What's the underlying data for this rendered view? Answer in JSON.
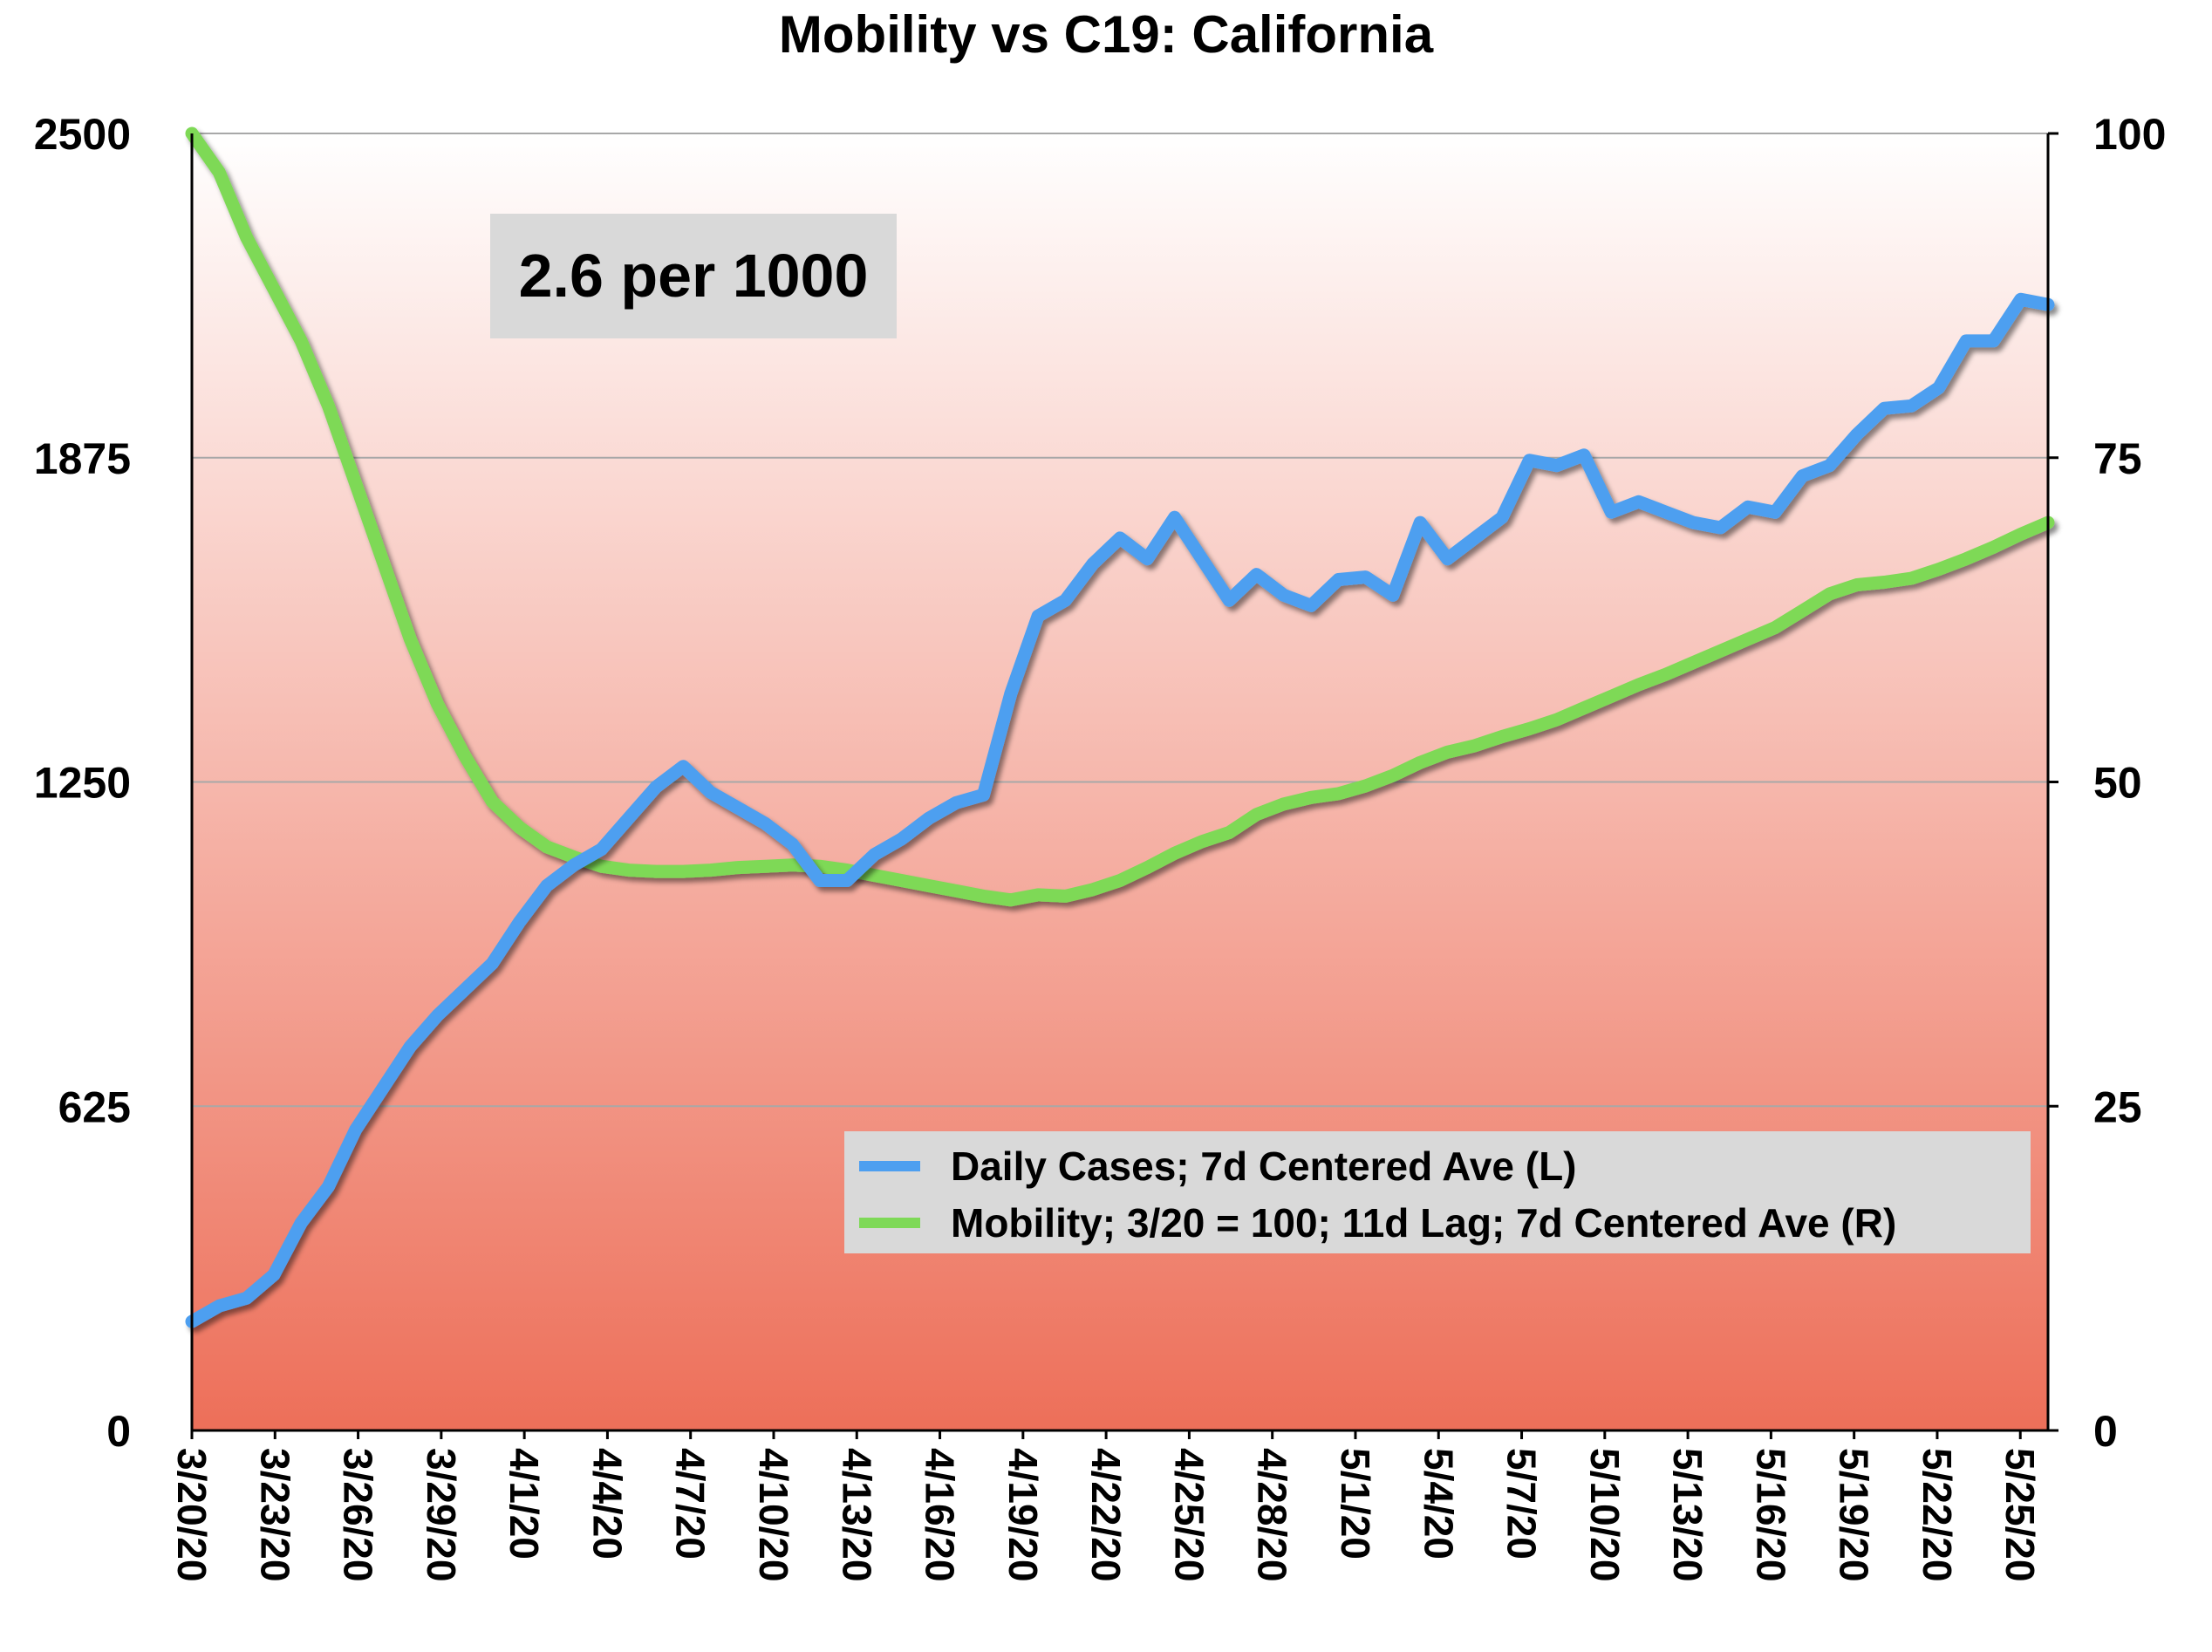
{
  "chart_data": {
    "type": "line",
    "title": "Mobility vs C19: California",
    "annotation": "2.6 per 1000",
    "xlabel": "",
    "ylabel_left": "",
    "ylabel_right": "",
    "y_left_ticks": [
      "0",
      "625",
      "1250",
      "1875",
      "2500"
    ],
    "y_right_ticks": [
      "0",
      "25",
      "50",
      "75",
      "100"
    ],
    "y_left_lim": [
      0,
      2500
    ],
    "y_right_lim": [
      0,
      100
    ],
    "x_tick_labels": [
      "3/20/20",
      "3/23/20",
      "3/26/20",
      "3/29/20",
      "4/1/20",
      "4/4/20",
      "4/7/20",
      "4/10/20",
      "4/13/20",
      "4/16/20",
      "4/19/20",
      "4/22/20",
      "4/25/20",
      "4/28/20",
      "5/1/20",
      "5/4/20",
      "5/7/20",
      "5/10/20",
      "5/13/20",
      "5/16/20",
      "5/19/20",
      "5/22/20",
      "5/25/20"
    ],
    "x_start": "2020-03-20",
    "x_end": "2020-05-26",
    "grid": true,
    "legend_position": "lower-right",
    "background_gradient": [
      "#ffffff",
      "#ed6f59"
    ],
    "series": [
      {
        "name": "Daily Cases; 7d Centered Ave (L)",
        "axis": "left",
        "color": "#4d9ff0",
        "values": [
          210,
          240,
          255,
          300,
          400,
          470,
          580,
          660,
          740,
          800,
          850,
          900,
          980,
          1050,
          1090,
          1120,
          1180,
          1240,
          1280,
          1230,
          1200,
          1170,
          1130,
          1060,
          1060,
          1110,
          1140,
          1180,
          1210,
          1225,
          1420,
          1570,
          1600,
          1670,
          1720,
          1680,
          1760,
          1680,
          1600,
          1650,
          1610,
          1590,
          1640,
          1645,
          1610,
          1750,
          1680,
          1720,
          1760,
          1870,
          1860,
          1880,
          1770,
          1790,
          1770,
          1750,
          1740,
          1780,
          1770,
          1840,
          1860,
          1920,
          1970,
          1975,
          2010,
          2100,
          2100,
          2180,
          2170
        ]
      },
      {
        "name": "Mobility; 3/20 = 100; 11d Lag; 7d Centered Ave (R)",
        "axis": "right",
        "color": "#7ed957",
        "values": [
          100,
          97,
          92,
          88,
          84,
          79,
          73,
          67,
          61,
          56,
          52,
          48.5,
          46.5,
          45,
          44.2,
          43.5,
          43.2,
          43.1,
          43.1,
          43.2,
          43.4,
          43.5,
          43.6,
          43.5,
          43.2,
          42.8,
          42.4,
          42,
          41.6,
          41.2,
          40.9,
          41.3,
          41.2,
          41.7,
          42.4,
          43.4,
          44.5,
          45.4,
          46.1,
          47.5,
          48.3,
          48.8,
          49.1,
          49.7,
          50.5,
          51.5,
          52.3,
          52.8,
          53.5,
          54.1,
          54.8,
          55.7,
          56.6,
          57.5,
          58.3,
          59.2,
          60.1,
          61,
          61.9,
          63.2,
          64.5,
          65.2,
          65.4,
          65.7,
          66.4,
          67.2,
          68.1,
          69.1,
          70
        ]
      }
    ]
  }
}
